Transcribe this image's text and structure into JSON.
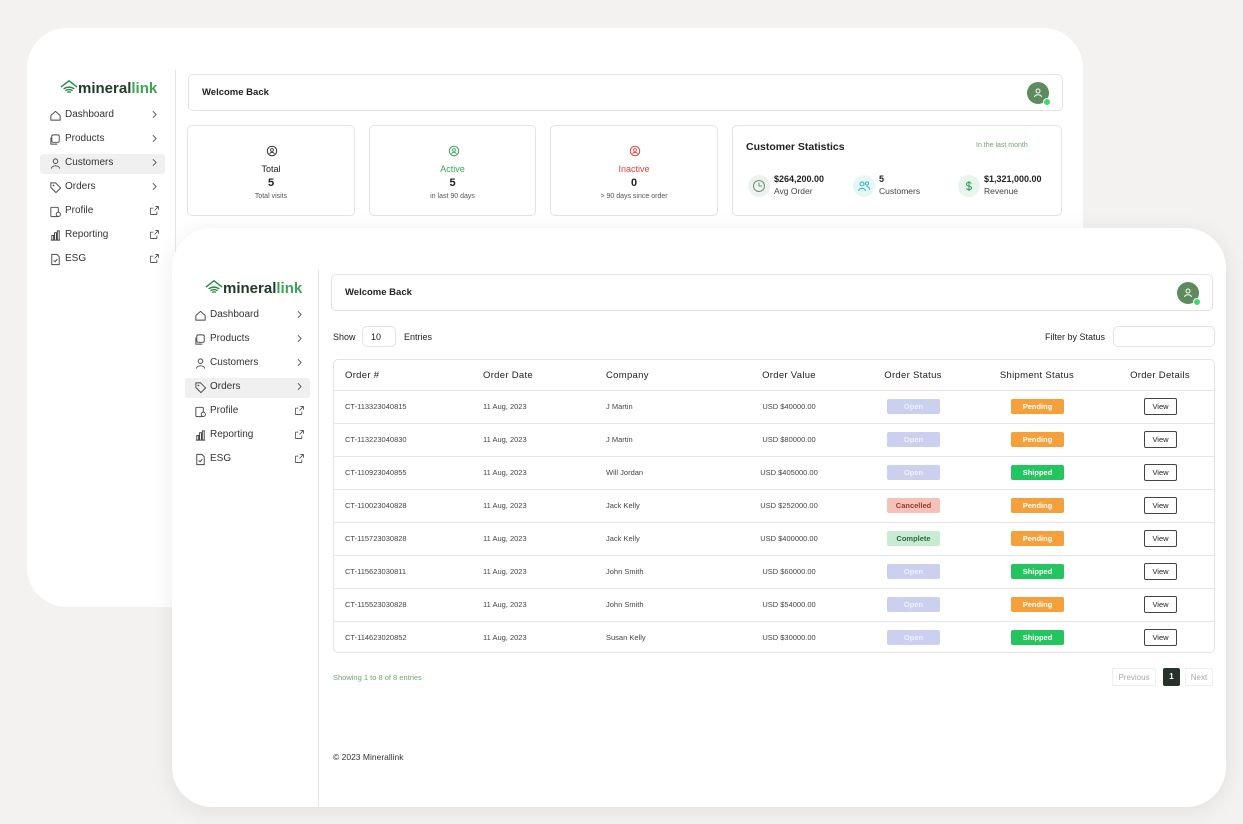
{
  "app": {
    "brand": {
      "main": "mineral",
      "accent": "link"
    },
    "nav": [
      "Dashboard",
      "Products",
      "Customers",
      "Orders",
      "Profile",
      "Reporting",
      "ESG"
    ],
    "welcome": "Welcome Back"
  },
  "dashboard_window": {
    "stats": [
      {
        "title": "Total",
        "value": "5",
        "note": "Total visits",
        "color": "#222222"
      },
      {
        "title": "Active",
        "value": "5",
        "note": "in last 90 days",
        "color": "#3aa655"
      },
      {
        "title": "Inactive",
        "value": "0",
        "note": "> 90 days since order",
        "color": "#e0443c"
      }
    ],
    "customer_statistics": {
      "title": "Customer Statistics",
      "period": "In the last month",
      "items": [
        {
          "value": "$264,200.00",
          "label": "Avg Order"
        },
        {
          "value": "5",
          "label": "Customers"
        },
        {
          "value": "$1,321,000.00",
          "label": "Revenue"
        }
      ]
    }
  },
  "orders_window": {
    "show": "Show",
    "page_size": "10",
    "entries": "Entries",
    "filter_label": "Filter by Status",
    "table": {
      "columns": [
        "Order #",
        "Order Date",
        "Company",
        "Order Value",
        "Order Status",
        "Shipment Status",
        "Order Details"
      ],
      "rows": [
        [
          "CT-113323040815",
          "11 Aug, 2023",
          "J Martin",
          "USD $40000.00",
          {
            "text": "Open",
            "color": "#ccd0ef",
            "text_color": "#eef0ff"
          },
          {
            "text": "Pending",
            "color": "#f5a03a",
            "text_color": "#ffffff"
          },
          "View"
        ],
        [
          "CT-113223040830",
          "11 Aug, 2023",
          "J Martin",
          "USD $80000.00",
          {
            "text": "Open",
            "color": "#ccd0ef",
            "text_color": "#eef0ff"
          },
          {
            "text": "Pending",
            "color": "#f5a03a",
            "text_color": "#ffffff"
          },
          "View"
        ],
        [
          "CT-110923040855",
          "11 Aug, 2023",
          "Will Jordan",
          "USD $405000.00",
          {
            "text": "Open",
            "color": "#ccd0ef",
            "text_color": "#eef0ff"
          },
          {
            "text": "Shipped",
            "color": "#22c55e",
            "text_color": "#ffffff"
          },
          "View"
        ],
        [
          "CT-110023040828",
          "11 Aug, 2023",
          "Jack Kelly",
          "USD $252000.00",
          {
            "text": "Cancelled",
            "color": "#f6c1b8",
            "text_color": "#9b3b2e"
          },
          {
            "text": "Pending",
            "color": "#f5a03a",
            "text_color": "#ffffff"
          },
          "View"
        ],
        [
          "CT-115723030828",
          "11 Aug, 2023",
          "Jack Kelly",
          "USD $400000.00",
          {
            "text": "Complete",
            "color": "#c9ebd3",
            "text_color": "#2d6b3d"
          },
          {
            "text": "Pending",
            "color": "#f5a03a",
            "text_color": "#ffffff"
          },
          "View"
        ],
        [
          "CT-115623030811",
          "11 Aug, 2023",
          "John Smith",
          "USD $60000.00",
          {
            "text": "Open",
            "color": "#ccd0ef",
            "text_color": "#eef0ff"
          },
          {
            "text": "Shipped",
            "color": "#22c55e",
            "text_color": "#ffffff"
          },
          "View"
        ],
        [
          "CT-115523030828",
          "11 Aug, 2023",
          "John Smith",
          "USD $54000.00",
          {
            "text": "Open",
            "color": "#ccd0ef",
            "text_color": "#eef0ff"
          },
          {
            "text": "Pending",
            "color": "#f5a03a",
            "text_color": "#ffffff"
          },
          "View"
        ],
        [
          "CT-114623020852",
          "11 Aug, 2023",
          "Susan Kelly",
          "USD $30000.00",
          {
            "text": "Open",
            "color": "#ccd0ef",
            "text_color": "#eef0ff"
          },
          {
            "text": "Shipped",
            "color": "#22c55e",
            "text_color": "#ffffff"
          },
          "View"
        ]
      ]
    },
    "summary": "Showing 1 to 8 of 8 entries",
    "pagination": {
      "previous": "Previous",
      "current": "1",
      "next": "Next"
    },
    "footer": "© 2023 Minerallink"
  }
}
